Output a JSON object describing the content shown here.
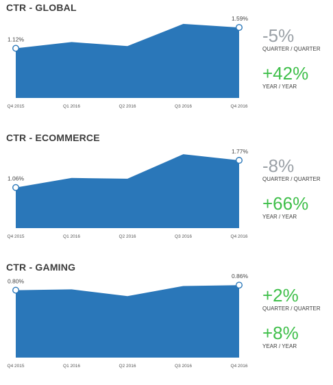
{
  "colors": {
    "area": "#2a77b9",
    "neutral": "#9aa0a6",
    "positive": "#3fbf4a"
  },
  "panels": [
    {
      "title": "CTR - GLOBAL",
      "stats": [
        {
          "value": "-5%",
          "caption": "QUARTER / QUARTER",
          "tone": "neutral"
        },
        {
          "value": "+42%",
          "caption": "YEAR / YEAR",
          "tone": "positive"
        }
      ]
    },
    {
      "title": "CTR - ECOMMERCE",
      "stats": [
        {
          "value": "-8%",
          "caption": "QUARTER / QUARTER",
          "tone": "neutral"
        },
        {
          "value": "+66%",
          "caption": "YEAR / YEAR",
          "tone": "positive"
        }
      ]
    },
    {
      "title": "CTR - GAMING",
      "stats": [
        {
          "value": "+2%",
          "caption": "QUARTER / QUARTER",
          "tone": "positive"
        },
        {
          "value": "+8%",
          "caption": "YEAR / YEAR",
          "tone": "positive"
        }
      ]
    }
  ],
  "chart_data": [
    {
      "type": "area",
      "title": "CTR - GLOBAL",
      "categories": [
        "Q4 2015",
        "Q1 2016",
        "Q2 2016",
        "Q3 2016",
        "Q4 2016"
      ],
      "values": [
        1.12,
        1.26,
        1.17,
        1.67,
        1.59
      ],
      "labels": [
        "1.12%",
        "",
        "",
        "",
        "1.59%"
      ],
      "ylim": [
        0,
        1.9
      ],
      "grid": false
    },
    {
      "type": "area",
      "title": "CTR - ECOMMERCE",
      "categories": [
        "Q4 2015",
        "Q1 2016",
        "Q2 2016",
        "Q3 2016",
        "Q4 2016"
      ],
      "values": [
        1.06,
        1.31,
        1.29,
        1.93,
        1.77
      ],
      "labels": [
        "1.06%",
        "",
        "",
        "",
        "1.77%"
      ],
      "ylim": [
        0,
        2.2
      ],
      "grid": false
    },
    {
      "type": "area",
      "title": "CTR - GAMING",
      "categories": [
        "Q4 2015",
        "Q1 2016",
        "Q2 2016",
        "Q3 2016",
        "Q4 2016"
      ],
      "values": [
        0.8,
        0.81,
        0.73,
        0.85,
        0.86
      ],
      "labels": [
        "0.80%",
        "",
        "",
        "",
        "0.86%"
      ],
      "ylim": [
        0,
        1.0
      ],
      "grid": false
    }
  ]
}
